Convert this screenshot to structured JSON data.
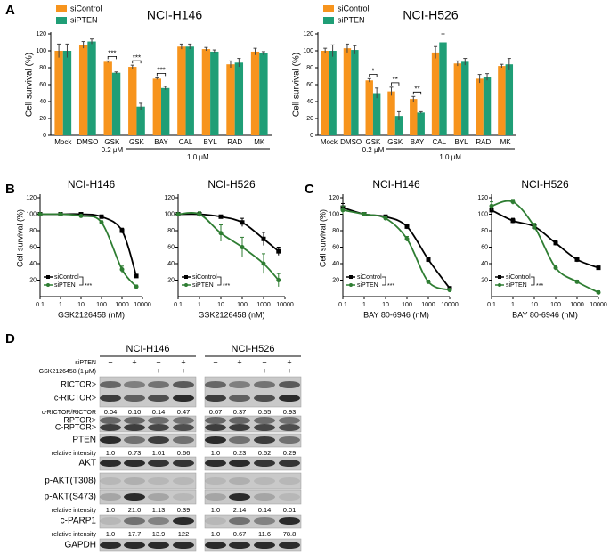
{
  "panel_labels": [
    "A",
    "B",
    "C",
    "D"
  ],
  "chart_data": [
    {
      "type": "bar",
      "title": "NCI-H146",
      "y_label": "Cell survival (%)",
      "categories": [
        "Mock",
        "DMSO",
        "GSK",
        "GSK",
        "BAY",
        "CAL",
        "BYL",
        "RAD",
        "MK"
      ],
      "groups": [
        {
          "label": "0.2 μM",
          "span": [
            2,
            2
          ]
        },
        {
          "label": "1.0 μM",
          "span": [
            3,
            8
          ]
        }
      ],
      "series": [
        {
          "name": "siControl",
          "color": "#f7941d",
          "values": [
            100,
            107,
            87,
            81,
            67,
            105,
            102,
            84,
            99
          ],
          "errors": [
            8,
            4,
            1,
            2,
            1,
            3,
            2,
            4,
            4
          ]
        },
        {
          "name": "siPTEN",
          "color": "#1f9e76",
          "values": [
            100,
            111,
            74,
            34,
            56,
            105,
            99,
            86,
            97
          ],
          "errors": [
            8,
            3,
            1,
            4,
            2,
            3,
            2,
            5,
            2
          ]
        }
      ],
      "significance": [
        null,
        null,
        "***",
        "***",
        "***",
        null,
        null,
        null,
        null
      ],
      "ylim": [
        0,
        120
      ],
      "yticks": [
        0,
        20,
        40,
        60,
        80,
        100,
        120
      ]
    },
    {
      "type": "bar",
      "title": "NCI-H526",
      "y_label": "Cell survival (%)",
      "categories": [
        "Mock",
        "DMSO",
        "GSK",
        "GSK",
        "BAY",
        "CAL",
        "BYL",
        "RAD",
        "MK"
      ],
      "groups": [
        {
          "label": "0.2 μM",
          "span": [
            2,
            2
          ]
        },
        {
          "label": "1.0 μM",
          "span": [
            3,
            8
          ]
        }
      ],
      "series": [
        {
          "name": "siControl",
          "color": "#f7941d",
          "values": [
            100,
            103,
            65,
            52,
            43,
            98,
            85,
            67,
            82
          ],
          "errors": [
            3,
            5,
            2,
            5,
            3,
            7,
            3,
            5,
            2
          ]
        },
        {
          "name": "siPTEN",
          "color": "#1f9e76",
          "values": [
            100,
            101,
            50,
            23,
            27,
            110,
            87,
            69,
            84
          ],
          "errors": [
            7,
            5,
            6,
            5,
            1,
            10,
            4,
            4,
            7
          ]
        }
      ],
      "significance": [
        null,
        null,
        "*",
        "**",
        "**",
        null,
        null,
        null,
        null
      ],
      "ylim": [
        0,
        120
      ],
      "yticks": [
        0,
        20,
        40,
        60,
        80,
        100,
        120
      ]
    },
    {
      "type": "line",
      "title": "NCI-H146",
      "x_label": "GSK2126458 (nM)",
      "y_label": "Cell survival (%)",
      "log_x": true,
      "xlim": [
        0.1,
        10000
      ],
      "xticks": [
        0.1,
        1,
        10,
        100,
        1000,
        10000
      ],
      "ylim": [
        0,
        120
      ],
      "yticks": [
        20,
        40,
        60,
        80,
        100,
        120
      ],
      "series": [
        {
          "name": "siControl",
          "color": "#000000",
          "marker": "square",
          "x": [
            0.1,
            1,
            10,
            100,
            1000,
            5000
          ],
          "values": [
            100,
            100,
            100,
            97,
            80,
            25
          ],
          "errors": [
            1,
            1,
            1,
            2,
            3,
            2
          ]
        },
        {
          "name": "siPTEN",
          "color": "#2e7d32",
          "marker": "circle",
          "x": [
            0.1,
            1,
            10,
            100,
            1000,
            5000
          ],
          "values": [
            100,
            100,
            98,
            90,
            33,
            12
          ],
          "errors": [
            1,
            1,
            1,
            2,
            4,
            2
          ]
        }
      ],
      "significance": "***"
    },
    {
      "type": "line",
      "title": "NCI-H526",
      "x_label": "GSK2126458 (nM)",
      "log_x": true,
      "xlim": [
        0.1,
        10000
      ],
      "xticks": [
        0.1,
        1,
        10,
        100,
        1000,
        10000
      ],
      "ylim": [
        0,
        120
      ],
      "yticks": [
        20,
        40,
        60,
        80,
        100,
        120
      ],
      "series": [
        {
          "name": "siControl",
          "color": "#000000",
          "marker": "square",
          "x": [
            0.1,
            1,
            10,
            100,
            1000,
            5000
          ],
          "values": [
            100,
            100,
            97,
            90,
            70,
            55
          ],
          "errors": [
            1,
            1,
            2,
            5,
            8,
            5
          ]
        },
        {
          "name": "siPTEN",
          "color": "#2e7d32",
          "marker": "circle",
          "x": [
            0.1,
            1,
            10,
            100,
            1000,
            5000
          ],
          "values": [
            100,
            100,
            77,
            60,
            40,
            20
          ],
          "errors": [
            1,
            3,
            10,
            12,
            12,
            8
          ]
        }
      ],
      "significance": "***"
    },
    {
      "type": "line",
      "title": "NCI-H146",
      "x_label": "BAY 80-6946 (nM)",
      "y_label": "Cell survival (%)",
      "log_x": true,
      "xlim": [
        0.1,
        10000
      ],
      "xticks": [
        0.1,
        1,
        10,
        100,
        1000,
        10000
      ],
      "ylim": [
        0,
        120
      ],
      "yticks": [
        20,
        40,
        60,
        80,
        100,
        120
      ],
      "series": [
        {
          "name": "siControl",
          "color": "#000000",
          "marker": "square",
          "x": [
            0.1,
            1,
            10,
            100,
            1000,
            10000
          ],
          "values": [
            108,
            100,
            97,
            85,
            45,
            10
          ],
          "errors": [
            5,
            2,
            2,
            3,
            3,
            2
          ]
        },
        {
          "name": "siPTEN",
          "color": "#2e7d32",
          "marker": "circle",
          "x": [
            0.1,
            1,
            10,
            100,
            1000,
            10000
          ],
          "values": [
            105,
            100,
            95,
            70,
            18,
            8
          ],
          "errors": [
            5,
            2,
            2,
            3,
            2,
            2
          ]
        }
      ],
      "significance": "***"
    },
    {
      "type": "line",
      "title": "NCI-H526",
      "x_label": "BAY 80-6946 (nM)",
      "log_x": true,
      "xlim": [
        0.1,
        10000
      ],
      "xticks": [
        0.1,
        1,
        10,
        100,
        1000,
        10000
      ],
      "ylim": [
        0,
        120
      ],
      "yticks": [
        20,
        40,
        60,
        80,
        100,
        120
      ],
      "series": [
        {
          "name": "siControl",
          "color": "#000000",
          "marker": "square",
          "x": [
            0.1,
            1,
            10,
            100,
            1000,
            10000
          ],
          "values": [
            105,
            92,
            85,
            65,
            45,
            35
          ],
          "errors": [
            5,
            3,
            3,
            3,
            3,
            2
          ]
        },
        {
          "name": "siPTEN",
          "color": "#2e7d32",
          "marker": "circle",
          "x": [
            0.1,
            1,
            10,
            100,
            1000,
            10000
          ],
          "values": [
            110,
            115,
            85,
            35,
            18,
            5
          ],
          "errors": [
            5,
            3,
            4,
            3,
            2,
            2
          ]
        }
      ],
      "significance": "***"
    }
  ],
  "blot": {
    "cell_lines": [
      "NCI-H146",
      "NCI-H526"
    ],
    "conditions": [
      {
        "label": "siPTEN",
        "signs": [
          [
            "−",
            "+",
            "−",
            "+"
          ],
          [
            "−",
            "+",
            "−",
            "+"
          ]
        ]
      },
      {
        "label": "GSK2126458 (1 μM)",
        "signs": [
          [
            "−",
            "−",
            "+",
            "+"
          ],
          [
            "−",
            "−",
            "+",
            "+"
          ]
        ]
      }
    ],
    "rows": [
      {
        "labels": [
          "RICTOR>",
          "c-RICTOR>"
        ]
      },
      {
        "label": "c-RICTOR/RICTOR",
        "values": [
          [
            "0.04",
            "0.10",
            "0.14",
            "0.47"
          ],
          [
            "0.07",
            "0.37",
            "0.55",
            "0.93"
          ]
        ]
      },
      {
        "labels": [
          "RPTOR>",
          "C-RPTOR>"
        ]
      },
      {
        "labels": [
          "PTEN"
        ]
      },
      {
        "label": "relative intensity",
        "values": [
          [
            "1.0",
            "0.73",
            "1.01",
            "0.66"
          ],
          [
            "1.0",
            "0.23",
            "0.52",
            "0.29"
          ]
        ]
      },
      {
        "labels": [
          "AKT"
        ]
      },
      {
        "labels": [
          "p-AKT(T308)"
        ]
      },
      {
        "labels": [
          "p-AKT(S473)"
        ]
      },
      {
        "label": "relative intensity",
        "values": [
          [
            "1.0",
            "21.0",
            "1.13",
            "0.39"
          ],
          [
            "1.0",
            "2.14",
            "0.14",
            "0.01"
          ]
        ]
      },
      {
        "labels": [
          "c-PARP1"
        ]
      },
      {
        "label": "relative intensity",
        "values": [
          [
            "1.0",
            "17.7",
            "13.9",
            "122"
          ],
          [
            "1.0",
            "0.67",
            "11.6",
            "78.8"
          ]
        ]
      },
      {
        "labels": [
          "GAPDH"
        ]
      }
    ]
  }
}
